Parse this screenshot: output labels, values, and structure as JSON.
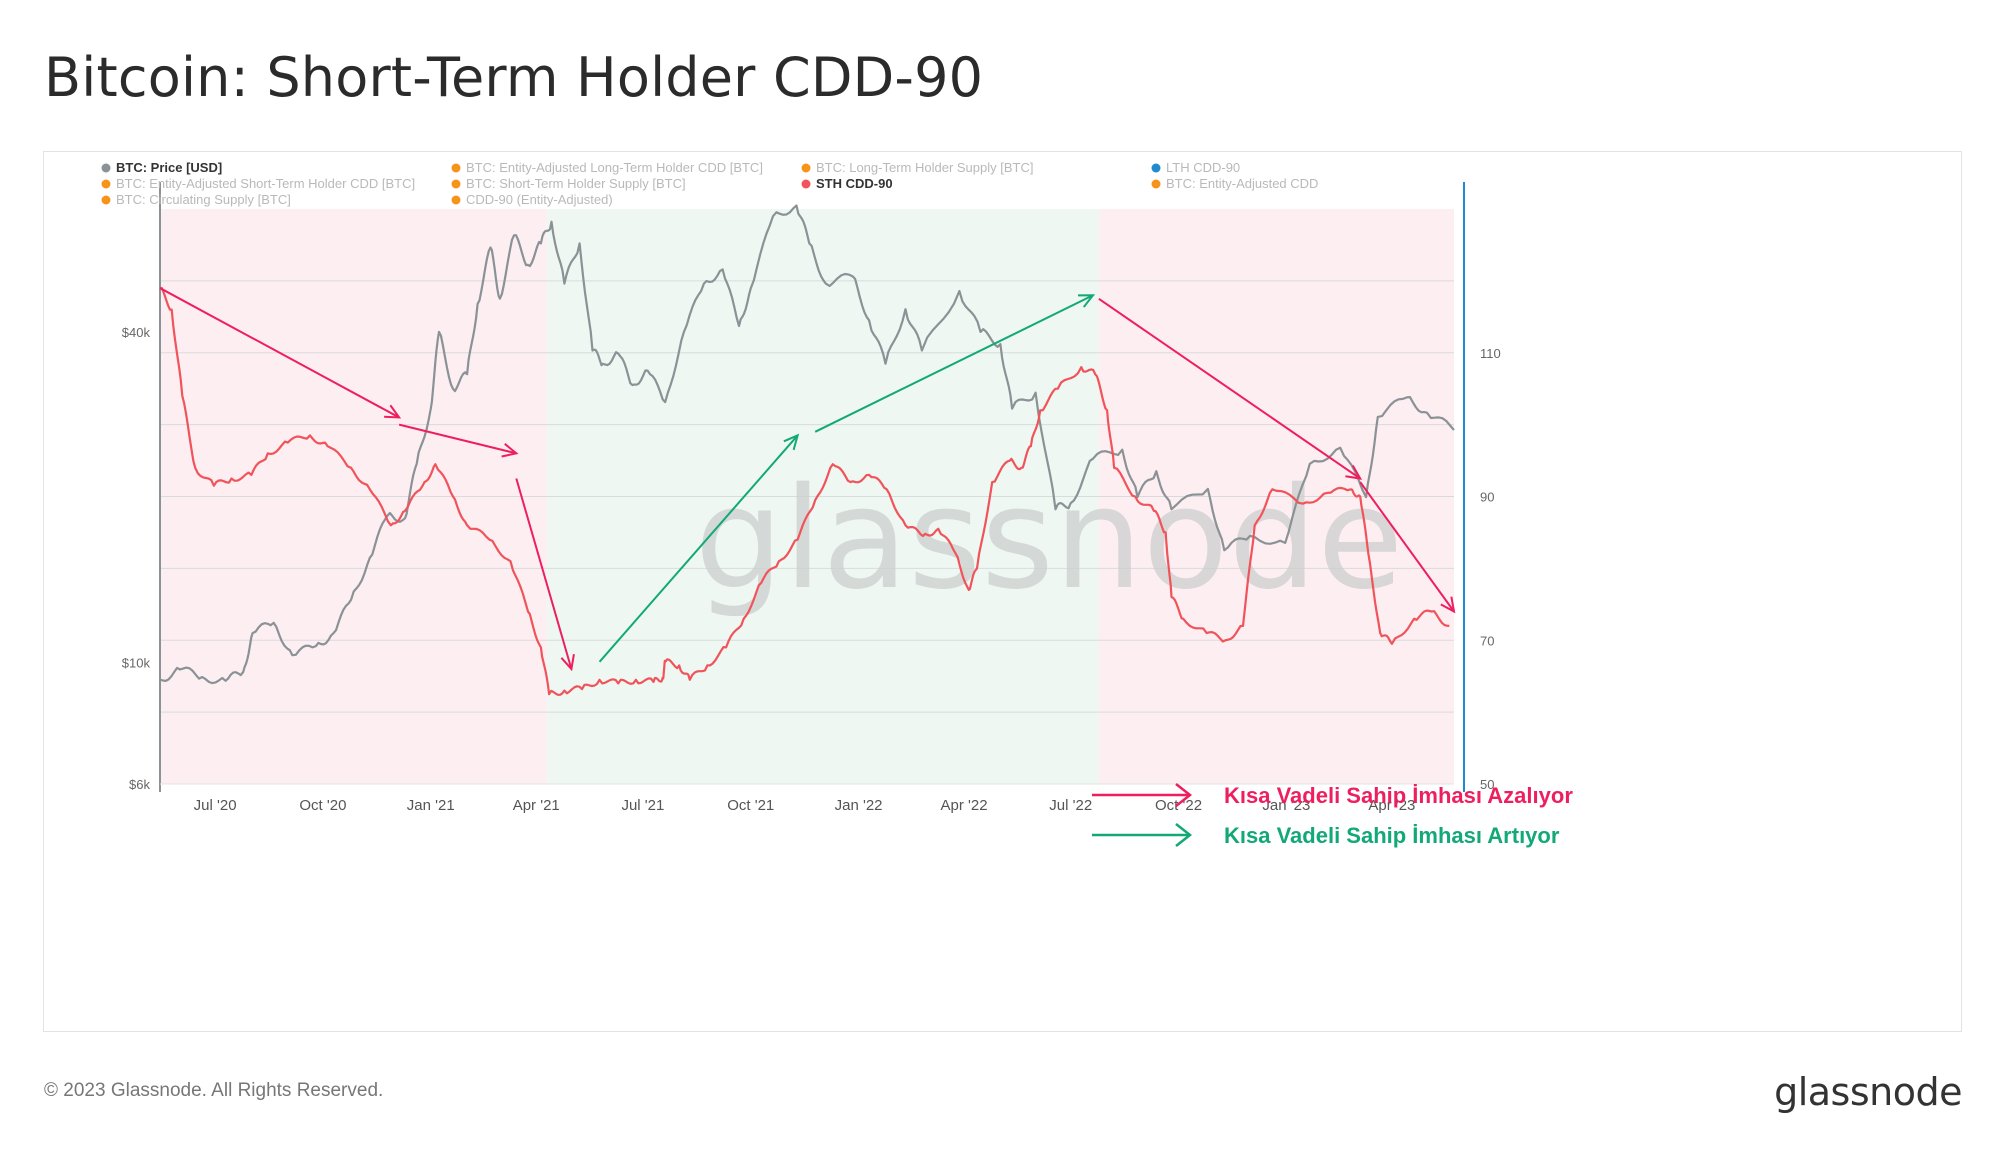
{
  "page": {
    "title": "Bitcoin: Short-Term Holder CDD-90",
    "copyright": "© 2023 Glassnode. All Rights Reserved.",
    "logo": "glassnode",
    "watermark": "glassnode"
  },
  "legend": [
    {
      "label": "BTC: Price [USD]",
      "color": "#8a9296",
      "active": true
    },
    {
      "label": "BTC: Entity-Adjusted Long-Term Holder CDD [BTC]",
      "color": "#f7931a",
      "active": false
    },
    {
      "label": "BTC: Long-Term Holder Supply [BTC]",
      "color": "#f7931a",
      "active": false
    },
    {
      "label": "LTH CDD-90",
      "color": "#1f8ad0",
      "active": false
    },
    {
      "label": "BTC: Entity-Adjusted Short-Term Holder CDD [BTC]",
      "color": "#f7931a",
      "active": false
    },
    {
      "label": "BTC: Short-Term Holder Supply [BTC]",
      "color": "#f7931a",
      "active": false
    },
    {
      "label": "STH CDD-90",
      "color": "#f0545a",
      "active": true
    },
    {
      "label": "BTC: Entity-Adjusted CDD",
      "color": "#f7931a",
      "active": false
    },
    {
      "label": "BTC: Circulating Supply [BTC]",
      "color": "#f7931a",
      "active": false
    },
    {
      "label": "CDD-90 (Entity-Adjusted)",
      "color": "#f7931a",
      "active": false
    }
  ],
  "annotations": {
    "decreasing_label": "Kısa Vadeli Sahip İmhası Azalıyor",
    "increasing_label": "Kısa Vadeli Sahip İmhası Artıyor",
    "decreasing_color": "#ee1f5f",
    "increasing_color": "#12a877"
  },
  "chart_data": {
    "type": "line",
    "x_range": [
      "2020-05-15",
      "2023-05-24"
    ],
    "x_ticks": [
      {
        "date": "2020-07-01",
        "label": "Jul '20"
      },
      {
        "date": "2020-10-01",
        "label": "Oct '20"
      },
      {
        "date": "2021-01-01",
        "label": "Jan '21"
      },
      {
        "date": "2021-04-01",
        "label": "Apr '21"
      },
      {
        "date": "2021-07-01",
        "label": "Jul '21"
      },
      {
        "date": "2021-10-01",
        "label": "Oct '21"
      },
      {
        "date": "2022-01-01",
        "label": "Jan '22"
      },
      {
        "date": "2022-04-01",
        "label": "Apr '22"
      },
      {
        "date": "2022-07-01",
        "label": "Jul '22"
      },
      {
        "date": "2022-10-01",
        "label": "Oct '22"
      },
      {
        "date": "2023-01-01",
        "label": "Jan '23"
      },
      {
        "date": "2023-04-01",
        "label": "Apr '23"
      }
    ],
    "y_left": {
      "scale": "log",
      "range": [
        6000,
        67000
      ],
      "tick_labels": [
        {
          "value": 6000,
          "label": "$6k"
        },
        {
          "value": 10000,
          "label": "$10k"
        },
        {
          "value": 40000,
          "label": "$40k"
        }
      ]
    },
    "y_right": {
      "scale": "linear",
      "range": [
        50,
        130
      ],
      "tick_labels": [
        {
          "value": 50,
          "label": "50"
        },
        {
          "value": 70,
          "label": "70"
        },
        {
          "value": 90,
          "label": "90"
        },
        {
          "value": 110,
          "label": "110"
        }
      ]
    },
    "regimes": [
      {
        "start": "2020-05-15",
        "end": "2021-04-10",
        "color": "#fdeef2"
      },
      {
        "start": "2021-04-10",
        "end": "2022-07-25",
        "color": "#eef7f2"
      },
      {
        "start": "2022-07-25",
        "end": "2023-05-24",
        "color": "#fdeef2"
      }
    ],
    "series": [
      {
        "name": "BTC: Price [USD]",
        "axis": "left",
        "color": "#8a9296",
        "points": [
          [
            "2020-05-15",
            9300
          ],
          [
            "2020-06-01",
            9700
          ],
          [
            "2020-06-20",
            9400
          ],
          [
            "2020-07-10",
            9250
          ],
          [
            "2020-07-25",
            9600
          ],
          [
            "2020-08-02",
            11300
          ],
          [
            "2020-08-20",
            11800
          ],
          [
            "2020-09-05",
            10300
          ],
          [
            "2020-09-25",
            10700
          ],
          [
            "2020-10-10",
            11300
          ],
          [
            "2020-10-25",
            13000
          ],
          [
            "2020-11-10",
            15500
          ],
          [
            "2020-11-25",
            18500
          ],
          [
            "2020-12-10",
            18300
          ],
          [
            "2020-12-20",
            23000
          ],
          [
            "2021-01-01",
            29000
          ],
          [
            "2021-01-08",
            40000
          ],
          [
            "2021-01-20",
            31500
          ],
          [
            "2021-02-01",
            33500
          ],
          [
            "2021-02-10",
            45000
          ],
          [
            "2021-02-21",
            57000
          ],
          [
            "2021-03-01",
            46000
          ],
          [
            "2021-03-13",
            60000
          ],
          [
            "2021-03-25",
            53000
          ],
          [
            "2021-04-05",
            58000
          ],
          [
            "2021-04-14",
            63500
          ],
          [
            "2021-04-25",
            49000
          ],
          [
            "2021-05-08",
            58000
          ],
          [
            "2021-05-19",
            37000
          ],
          [
            "2021-05-28",
            35000
          ],
          [
            "2021-06-10",
            36500
          ],
          [
            "2021-06-22",
            32000
          ],
          [
            "2021-07-05",
            34000
          ],
          [
            "2021-07-20",
            29800
          ],
          [
            "2021-08-05",
            40000
          ],
          [
            "2021-08-22",
            49000
          ],
          [
            "2021-09-07",
            52000
          ],
          [
            "2021-09-21",
            41000
          ],
          [
            "2021-10-01",
            48000
          ],
          [
            "2021-10-20",
            65000
          ],
          [
            "2021-11-09",
            68000
          ],
          [
            "2021-11-20",
            58000
          ],
          [
            "2021-12-04",
            49000
          ],
          [
            "2021-12-27",
            50500
          ],
          [
            "2022-01-10",
            42000
          ],
          [
            "2022-01-24",
            35000
          ],
          [
            "2022-02-10",
            44000
          ],
          [
            "2022-02-24",
            37000
          ],
          [
            "2022-03-28",
            47500
          ],
          [
            "2022-04-15",
            40000
          ],
          [
            "2022-05-02",
            38000
          ],
          [
            "2022-05-12",
            29000
          ],
          [
            "2022-06-01",
            31000
          ],
          [
            "2022-06-18",
            19000
          ],
          [
            "2022-07-01",
            19500
          ],
          [
            "2022-07-20",
            23500
          ],
          [
            "2022-08-14",
            24400
          ],
          [
            "2022-08-27",
            20000
          ],
          [
            "2022-09-12",
            22300
          ],
          [
            "2022-09-25",
            19000
          ],
          [
            "2022-10-26",
            20700
          ],
          [
            "2022-11-09",
            16000
          ],
          [
            "2022-12-01",
            17000
          ],
          [
            "2022-12-31",
            16500
          ],
          [
            "2023-01-21",
            23000
          ],
          [
            "2023-02-16",
            24600
          ],
          [
            "2023-03-10",
            20000
          ],
          [
            "2023-03-20",
            28000
          ],
          [
            "2023-04-14",
            30400
          ],
          [
            "2023-05-01",
            28500
          ],
          [
            "2023-05-24",
            26500
          ]
        ]
      },
      {
        "name": "STH CDD-90",
        "axis": "right",
        "color": "#f0545a",
        "points": [
          [
            "2020-05-15",
            119
          ],
          [
            "2020-05-25",
            116
          ],
          [
            "2020-06-03",
            104
          ],
          [
            "2020-06-14",
            94
          ],
          [
            "2020-06-30",
            91.5
          ],
          [
            "2020-07-15",
            92.5
          ],
          [
            "2020-08-01",
            93
          ],
          [
            "2020-08-15",
            96
          ],
          [
            "2020-09-01",
            97.5
          ],
          [
            "2020-09-20",
            98.5
          ],
          [
            "2020-10-05",
            97
          ],
          [
            "2020-10-25",
            94
          ],
          [
            "2020-11-10",
            91
          ],
          [
            "2020-11-28",
            86
          ],
          [
            "2020-12-10",
            88
          ],
          [
            "2020-12-25",
            91.5
          ],
          [
            "2021-01-05",
            94.5
          ],
          [
            "2021-01-20",
            90
          ],
          [
            "2021-02-01",
            86
          ],
          [
            "2021-02-20",
            84
          ],
          [
            "2021-03-10",
            81
          ],
          [
            "2021-03-25",
            74
          ],
          [
            "2021-04-05",
            69
          ],
          [
            "2021-04-12",
            62.5
          ],
          [
            "2021-04-25",
            63
          ],
          [
            "2021-05-10",
            63.2
          ],
          [
            "2021-05-25",
            64.5
          ],
          [
            "2021-06-10",
            64
          ],
          [
            "2021-06-25",
            64.5
          ],
          [
            "2021-07-10",
            64.2
          ],
          [
            "2021-07-18",
            64.8
          ],
          [
            "2021-07-20",
            67
          ],
          [
            "2021-08-01",
            66.5
          ],
          [
            "2021-08-10",
            64.5
          ],
          [
            "2021-08-25",
            66.5
          ],
          [
            "2021-09-10",
            69
          ],
          [
            "2021-09-25",
            73
          ],
          [
            "2021-10-10",
            78
          ],
          [
            "2021-10-25",
            81
          ],
          [
            "2021-11-10",
            84
          ],
          [
            "2021-11-25",
            89.5
          ],
          [
            "2021-12-10",
            94.5
          ],
          [
            "2021-12-25",
            92
          ],
          [
            "2022-01-10",
            93
          ],
          [
            "2022-01-25",
            91
          ],
          [
            "2022-02-10",
            86
          ],
          [
            "2022-02-25",
            84.5
          ],
          [
            "2022-03-10",
            85.5
          ],
          [
            "2022-03-25",
            82
          ],
          [
            "2022-04-05",
            77
          ],
          [
            "2022-04-12",
            80
          ],
          [
            "2022-04-25",
            92
          ],
          [
            "2022-05-10",
            95
          ],
          [
            "2022-05-20",
            94
          ],
          [
            "2022-05-28",
            97
          ],
          [
            "2022-06-05",
            102
          ],
          [
            "2022-06-20",
            105
          ],
          [
            "2022-07-10",
            108
          ],
          [
            "2022-07-22",
            107
          ],
          [
            "2022-08-01",
            102
          ],
          [
            "2022-08-07",
            94
          ],
          [
            "2022-08-25",
            90
          ],
          [
            "2022-09-10",
            88
          ],
          [
            "2022-09-20",
            85
          ],
          [
            "2022-09-25",
            76
          ],
          [
            "2022-10-05",
            73
          ],
          [
            "2022-10-25",
            71
          ],
          [
            "2022-11-10",
            70
          ],
          [
            "2022-11-25",
            72
          ],
          [
            "2022-12-05",
            86
          ],
          [
            "2022-12-20",
            91
          ],
          [
            "2023-01-15",
            89
          ],
          [
            "2023-02-05",
            90.5
          ],
          [
            "2023-02-25",
            91
          ],
          [
            "2023-03-05",
            90
          ],
          [
            "2023-03-12",
            82
          ],
          [
            "2023-03-22",
            71
          ],
          [
            "2023-04-01",
            69.5
          ],
          [
            "2023-04-20",
            73
          ],
          [
            "2023-05-05",
            74
          ],
          [
            "2023-05-20",
            72
          ]
        ]
      }
    ],
    "trend_arrows": [
      {
        "kind": "decreasing",
        "from": [
          "2020-05-15",
          119
        ],
        "to": [
          "2020-12-05",
          101
        ]
      },
      {
        "kind": "decreasing",
        "from": [
          "2020-12-05",
          100
        ],
        "to": [
          "2021-03-15",
          96
        ]
      },
      {
        "kind": "decreasing",
        "from": [
          "2021-03-15",
          92.5
        ],
        "to": [
          "2021-05-01",
          66
        ]
      },
      {
        "kind": "increasing",
        "from": [
          "2021-05-25",
          67
        ],
        "to": [
          "2021-11-10",
          98.5
        ]
      },
      {
        "kind": "increasing",
        "from": [
          "2021-11-25",
          99
        ],
        "to": [
          "2022-07-20",
          118
        ]
      },
      {
        "kind": "decreasing",
        "from": [
          "2022-07-25",
          117.5
        ],
        "to": [
          "2023-03-05",
          92.5
        ]
      },
      {
        "kind": "decreasing",
        "from": [
          "2023-03-05",
          92
        ],
        "to": [
          "2023-05-24",
          74
        ]
      }
    ]
  }
}
